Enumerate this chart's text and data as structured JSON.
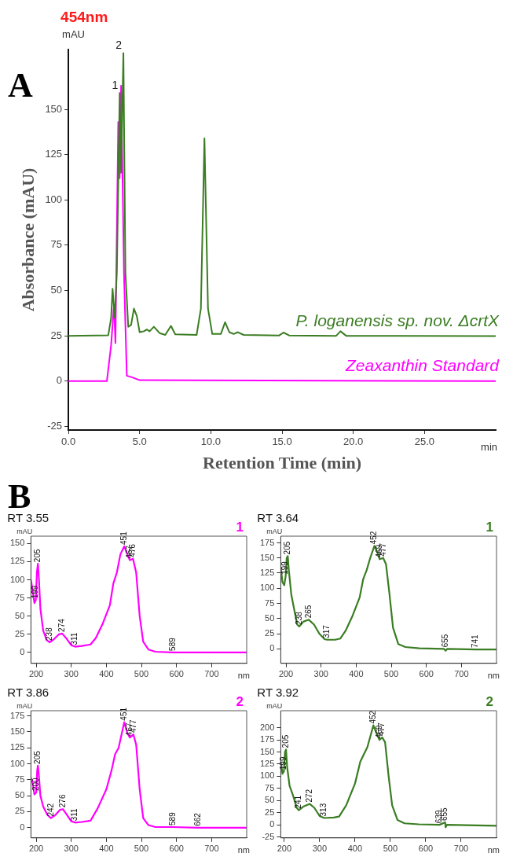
{
  "chart_data": [
    {
      "type": "line",
      "title": "454nm",
      "xlabel": "Retention Time (min)",
      "ylabel": "Absorbance (mAU)",
      "xlim": [
        0,
        30
      ],
      "ylim": [
        -27,
        183
      ],
      "xticks": [
        {
          "value": 0,
          "label": "0.0"
        },
        {
          "value": 5,
          "label": "5.0"
        },
        {
          "value": 10,
          "label": "10.0"
        },
        {
          "value": 15,
          "label": "15.0"
        },
        {
          "value": 20,
          "label": "20.0"
        },
        {
          "value": 25,
          "label": "25.0"
        }
      ],
      "yticks": [
        -25,
        0,
        25,
        50,
        75,
        100,
        125,
        150
      ],
      "grid": false,
      "legend": false,
      "marker": "none",
      "line_style": "solid",
      "series": [
        {
          "name": "P. loganensis sp. nov. ΔcrtX",
          "color": "#3a7d22",
          "x": [
            0,
            2.8,
            3.0,
            3.1,
            3.25,
            3.4,
            3.6,
            3.7,
            3.86,
            4.0,
            4.2,
            4.4,
            4.6,
            4.8,
            5.0,
            5.3,
            5.5,
            5.7,
            6.0,
            6.4,
            6.8,
            7.2,
            7.5,
            9.0,
            9.3,
            9.55,
            9.8,
            10.1,
            10.7,
            11.0,
            11.3,
            11.6,
            11.9,
            12.3,
            14.8,
            15.1,
            15.5,
            18.8,
            19.1,
            19.5,
            30
          ],
          "values": [
            25,
            25.3,
            35,
            51,
            35,
            60,
            159,
            115,
            181,
            60,
            30,
            31,
            40,
            36,
            27,
            27.5,
            28.5,
            27.5,
            30,
            26.5,
            25.5,
            30.5,
            25.8,
            25.5,
            40,
            134,
            40,
            26,
            26,
            32.5,
            27,
            26,
            27,
            25.5,
            25.2,
            26.8,
            25.2,
            25,
            27.5,
            25,
            24.8
          ]
        },
        {
          "name": "Zeaxanthin Standard",
          "color": "#ff00ff",
          "x": [
            0,
            2.7,
            3.0,
            3.2,
            3.3,
            3.5,
            3.6,
            3.7,
            3.8,
            3.9,
            4.1,
            4.5,
            5,
            30
          ],
          "values": [
            0,
            0,
            20,
            42,
            21,
            143,
            112,
            163,
            112,
            60,
            3,
            2,
            0.5,
            0
          ]
        }
      ],
      "annotations": [
        "A",
        "mAU",
        "min",
        "B",
        {
          "text": "1",
          "x": 3.6,
          "y": 159
        },
        {
          "text": "2",
          "x": 3.86,
          "y": 181
        }
      ]
    },
    {
      "type": "line",
      "title": "RT 3.55",
      "xlim": [
        185,
        800
      ],
      "ylim": [
        -15,
        160
      ],
      "xticks": [
        200,
        300,
        400,
        500,
        600,
        700
      ],
      "yticks": [
        0,
        25,
        50,
        75,
        100,
        125,
        150
      ],
      "grid": false,
      "legend": false,
      "marker": "none",
      "line_style": "solid",
      "series": [
        {
          "color": "#ff00ff",
          "x": [
            185,
            190,
            195,
            199,
            202,
            205,
            208,
            212,
            220,
            230,
            238,
            250,
            265,
            274,
            285,
            300,
            311,
            330,
            355,
            370,
            390,
            410,
            420,
            430,
            440,
            451,
            460,
            467,
            476,
            485,
            495,
            505,
            520,
            540,
            589,
            700,
            800
          ],
          "values": [
            100,
            85,
            68,
            72,
            110,
            122,
            100,
            60,
            30,
            17,
            14,
            18,
            25,
            26,
            20,
            10,
            8,
            9,
            11,
            20,
            40,
            65,
            95,
            110,
            135,
            146,
            135,
            127,
            129,
            110,
            50,
            15,
            4,
            1,
            0,
            0,
            0
          ]
        }
      ],
      "annotations": [
        "mAU",
        "nm",
        "1",
        {
          "text": "199",
          "x": 199,
          "y": 72
        },
        {
          "text": "205",
          "x": 205,
          "y": 122
        },
        {
          "text": "238",
          "x": 238,
          "y": 14
        },
        {
          "text": "274",
          "x": 274,
          "y": 26
        },
        {
          "text": "311",
          "x": 311,
          "y": 8
        },
        {
          "text": "451",
          "x": 451,
          "y": 146
        },
        {
          "text": "467",
          "x": 467,
          "y": 127
        },
        {
          "text": "476",
          "x": 476,
          "y": 129
        },
        {
          "text": "589",
          "x": 589,
          "y": 0
        }
      ]
    },
    {
      "type": "line",
      "title": "RT 3.64",
      "xlim": [
        185,
        800
      ],
      "ylim": [
        -24,
        186
      ],
      "xticks": [
        200,
        300,
        400,
        500,
        600,
        700
      ],
      "yticks": [
        0,
        25,
        50,
        75,
        100,
        125,
        150,
        175
      ],
      "grid": false,
      "legend": false,
      "marker": "none",
      "line_style": "solid",
      "series": [
        {
          "color": "#3a7d22",
          "x": [
            185,
            190,
            195,
            199,
            202,
            205,
            208,
            215,
            225,
            232,
            238,
            250,
            265,
            280,
            295,
            310,
            317,
            340,
            355,
            370,
            390,
            410,
            420,
            430,
            440,
            452,
            460,
            467,
            477,
            485,
            495,
            505,
            520,
            540,
            580,
            650,
            655,
            660,
            741,
            800
          ],
          "values": [
            135,
            110,
            105,
            120,
            150,
            153,
            130,
            90,
            60,
            40,
            37,
            45,
            48,
            40,
            25,
            16,
            15,
            15,
            17,
            30,
            55,
            85,
            115,
            130,
            150,
            170,
            160,
            148,
            150,
            140,
            90,
            35,
            8,
            3,
            1,
            0,
            -3,
            0,
            -1,
            -1
          ]
        }
      ],
      "annotations": [
        "mAU",
        "nm",
        "1",
        {
          "text": "199",
          "x": 199,
          "y": 120
        },
        {
          "text": "205",
          "x": 205,
          "y": 153
        },
        {
          "text": "238",
          "x": 238,
          "y": 37
        },
        {
          "text": "265",
          "x": 265,
          "y": 48
        },
        {
          "text": "317",
          "x": 317,
          "y": 15
        },
        {
          "text": "452",
          "x": 452,
          "y": 170
        },
        {
          "text": "469",
          "x": 467,
          "y": 148
        },
        {
          "text": "477",
          "x": 477,
          "y": 150
        },
        {
          "text": "655",
          "x": 655,
          "y": 0
        },
        {
          "text": "741",
          "x": 741,
          "y": -1
        }
      ]
    },
    {
      "type": "line",
      "title": "RT 3.86",
      "xlim": [
        185,
        800
      ],
      "ylim": [
        -16,
        183
      ],
      "xticks": [
        200,
        300,
        400,
        500,
        600,
        700
      ],
      "yticks": [
        0,
        25,
        50,
        75,
        100,
        125,
        150,
        175
      ],
      "grid": false,
      "legend": false,
      "marker": "none",
      "line_style": "solid",
      "series": [
        {
          "color": "#ff00ff",
          "x": [
            185,
            190,
            195,
            200,
            203,
            205,
            208,
            212,
            220,
            232,
            242,
            255,
            268,
            276,
            285,
            300,
            311,
            330,
            355,
            375,
            400,
            415,
            425,
            435,
            451,
            460,
            467,
            477,
            485,
            495,
            505,
            520,
            540,
            589,
            662,
            800
          ],
          "values": [
            78,
            70,
            52,
            55,
            90,
            97,
            80,
            50,
            33,
            20,
            15,
            20,
            28,
            29,
            22,
            10,
            8,
            9,
            11,
            30,
            60,
            90,
            115,
            125,
            165,
            148,
            141,
            146,
            130,
            60,
            15,
            4,
            1,
            1,
            0,
            0
          ]
        }
      ],
      "annotations": [
        "mAU",
        "nm",
        "2",
        {
          "text": "200",
          "x": 200,
          "y": 55
        },
        {
          "text": "205",
          "x": 205,
          "y": 97
        },
        {
          "text": "242",
          "x": 242,
          "y": 15
        },
        {
          "text": "276",
          "x": 276,
          "y": 29
        },
        {
          "text": "311",
          "x": 311,
          "y": 8
        },
        {
          "text": "451",
          "x": 451,
          "y": 165
        },
        {
          "text": "467",
          "x": 467,
          "y": 141
        },
        {
          "text": "477",
          "x": 477,
          "y": 146
        },
        {
          "text": "589",
          "x": 589,
          "y": 1
        },
        {
          "text": "662",
          "x": 662,
          "y": 0
        }
      ]
    },
    {
      "type": "line",
      "title": "RT 3.92",
      "xlim": [
        190,
        800
      ],
      "ylim": [
        -27,
        235
      ],
      "xticks": [
        200,
        300,
        400,
        500,
        600,
        700
      ],
      "yticks": [
        -25,
        0,
        25,
        50,
        75,
        100,
        125,
        150,
        175,
        200
      ],
      "grid": false,
      "legend": false,
      "marker": "none",
      "line_style": "solid",
      "series": [
        {
          "color": "#3a7d22",
          "x": [
            190,
            195,
            199,
            202,
            205,
            208,
            215,
            225,
            235,
            241,
            255,
            272,
            285,
            300,
            313,
            340,
            355,
            375,
            400,
            415,
            425,
            435,
            452,
            460,
            469,
            477,
            485,
            495,
            505,
            520,
            540,
            580,
            639,
            655,
            656,
            660,
            800
          ],
          "values": [
            130,
            105,
            110,
            150,
            155,
            120,
            80,
            60,
            35,
            30,
            38,
            43,
            35,
            18,
            14,
            15,
            17,
            40,
            85,
            130,
            145,
            160,
            205,
            190,
            175,
            180,
            170,
            100,
            40,
            10,
            3,
            1,
            0,
            5,
            -5,
            0,
            -2
          ]
        }
      ],
      "annotations": [
        "mAU",
        "nm",
        "2",
        {
          "text": "199",
          "x": 199,
          "y": 110
        },
        {
          "text": "205",
          "x": 205,
          "y": 155
        },
        {
          "text": "241",
          "x": 241,
          "y": 30
        },
        {
          "text": "272",
          "x": 272,
          "y": 43
        },
        {
          "text": "313",
          "x": 313,
          "y": 14
        },
        {
          "text": "452",
          "x": 452,
          "y": 205
        },
        {
          "text": "469",
          "x": 469,
          "y": 175
        },
        {
          "text": "477",
          "x": 477,
          "y": 180
        },
        {
          "text": "639",
          "x": 639,
          "y": 0
        },
        {
          "text": "655",
          "x": 655,
          "y": 5
        }
      ]
    }
  ]
}
